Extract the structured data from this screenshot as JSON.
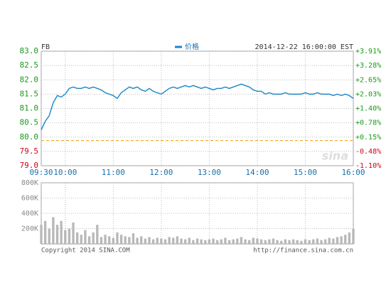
{
  "chart_data": [
    {
      "type": "line",
      "title": "FB",
      "date": "2014-12-22 16:00:00 EST",
      "x": [
        "09:30",
        "09:35",
        "09:40",
        "09:45",
        "09:50",
        "09:55",
        "10:00",
        "10:05",
        "10:10",
        "10:15",
        "10:20",
        "10:25",
        "10:30",
        "10:35",
        "10:40",
        "10:45",
        "10:50",
        "10:55",
        "11:00",
        "11:05",
        "11:10",
        "11:15",
        "11:20",
        "11:25",
        "11:30",
        "11:35",
        "11:40",
        "11:45",
        "11:50",
        "11:55",
        "12:00",
        "12:05",
        "12:10",
        "12:15",
        "12:20",
        "12:25",
        "12:30",
        "12:35",
        "12:40",
        "12:45",
        "12:50",
        "12:55",
        "13:00",
        "13:05",
        "13:10",
        "13:15",
        "13:20",
        "13:25",
        "13:30",
        "13:35",
        "13:40",
        "13:45",
        "13:50",
        "13:55",
        "14:00",
        "14:05",
        "14:10",
        "14:15",
        "14:20",
        "14:25",
        "14:30",
        "14:35",
        "14:40",
        "14:45",
        "14:50",
        "14:55",
        "15:00",
        "15:05",
        "15:10",
        "15:15",
        "15:20",
        "15:25",
        "15:30",
        "15:35",
        "15:40",
        "15:45",
        "15:50",
        "15:55",
        "16:00"
      ],
      "series": [
        {
          "name": "价格",
          "color": "#1a86c8",
          "values": [
            80.25,
            80.55,
            80.75,
            81.2,
            81.45,
            81.4,
            81.5,
            81.7,
            81.75,
            81.7,
            81.7,
            81.75,
            81.7,
            81.75,
            81.7,
            81.65,
            81.55,
            81.5,
            81.45,
            81.35,
            81.55,
            81.65,
            81.75,
            81.7,
            81.75,
            81.65,
            81.6,
            81.7,
            81.6,
            81.55,
            81.5,
            81.6,
            81.7,
            81.75,
            81.7,
            81.75,
            81.8,
            81.75,
            81.8,
            81.75,
            81.7,
            81.75,
            81.7,
            81.65,
            81.7,
            81.7,
            81.75,
            81.7,
            81.75,
            81.8,
            81.85,
            81.8,
            81.75,
            81.65,
            81.6,
            81.6,
            81.5,
            81.55,
            81.5,
            81.5,
            81.5,
            81.55,
            81.5,
            81.5,
            81.5,
            81.5,
            81.55,
            81.5,
            81.5,
            81.55,
            81.5,
            81.5,
            81.5,
            81.45,
            81.5,
            81.45,
            81.5,
            81.45,
            81.35
          ]
        }
      ],
      "xticks": [
        "09:30",
        "10:00",
        "11:00",
        "12:00",
        "13:00",
        "14:00",
        "15:00",
        "16:00"
      ],
      "ylim": [
        79,
        83
      ],
      "yticks": [
        {
          "value": 79,
          "label": "79.0"
        },
        79.5,
        {
          "value": 80,
          "label": "80.0"
        },
        80.5,
        {
          "value": 81,
          "label": "81.0"
        },
        81.5,
        {
          "value": 82,
          "label": "82.0"
        },
        82.5,
        {
          "value": 83,
          "label": "83.0"
        }
      ],
      "y2lim": [
        -1.1,
        3.91
      ],
      "y2ticks": [
        {
          "value": -1.1,
          "label": "-1.10%"
        },
        {
          "value": -0.48,
          "label": "-0.48%"
        },
        {
          "value": 0.15,
          "label": "+0.15%"
        },
        {
          "value": 0.78,
          "label": "+0.78%"
        },
        {
          "value": 1.4,
          "label": "+1.40%"
        },
        {
          "value": 2.03,
          "label": "+2.03%"
        },
        {
          "value": 2.65,
          "label": "+2.65%"
        },
        {
          "value": 3.28,
          "label": "+3.28%"
        },
        {
          "value": 3.91,
          "label": "+3.91%"
        }
      ],
      "reference_line": 79.88,
      "reference_color": "#f5a623",
      "up_color": "#1a9a1a",
      "down_color": "#d0021b",
      "grid": true,
      "watermark": "sina"
    },
    {
      "type": "bar",
      "color": "#b8b8b8",
      "values": [
        250000,
        300000,
        200000,
        350000,
        250000,
        300000,
        180000,
        200000,
        280000,
        150000,
        120000,
        180000,
        100000,
        150000,
        250000,
        90000,
        120000,
        100000,
        80000,
        150000,
        120000,
        100000,
        90000,
        140000,
        80000,
        100000,
        70000,
        90000,
        60000,
        80000,
        70000,
        60000,
        90000,
        80000,
        100000,
        70000,
        60000,
        80000,
        50000,
        70000,
        60000,
        50000,
        60000,
        70000,
        50000,
        60000,
        80000,
        50000,
        60000,
        70000,
        90000,
        60000,
        50000,
        80000,
        70000,
        60000,
        50000,
        60000,
        70000,
        50000,
        40000,
        60000,
        50000,
        60000,
        50000,
        40000,
        60000,
        50000,
        60000,
        70000,
        50000,
        60000,
        80000,
        70000,
        90000,
        100000,
        120000,
        150000,
        200000
      ],
      "ylim": [
        0,
        800000
      ],
      "yticks": [
        {
          "value": 200000,
          "label": "200K"
        },
        {
          "value": 400000,
          "label": "400K"
        },
        {
          "value": 600000,
          "label": "600K"
        },
        {
          "value": 800000,
          "label": "800K"
        }
      ],
      "grid": true
    }
  ],
  "copyright": "Copyright 2014 SINA.COM",
  "source": "http://finance.sina.com.cn"
}
